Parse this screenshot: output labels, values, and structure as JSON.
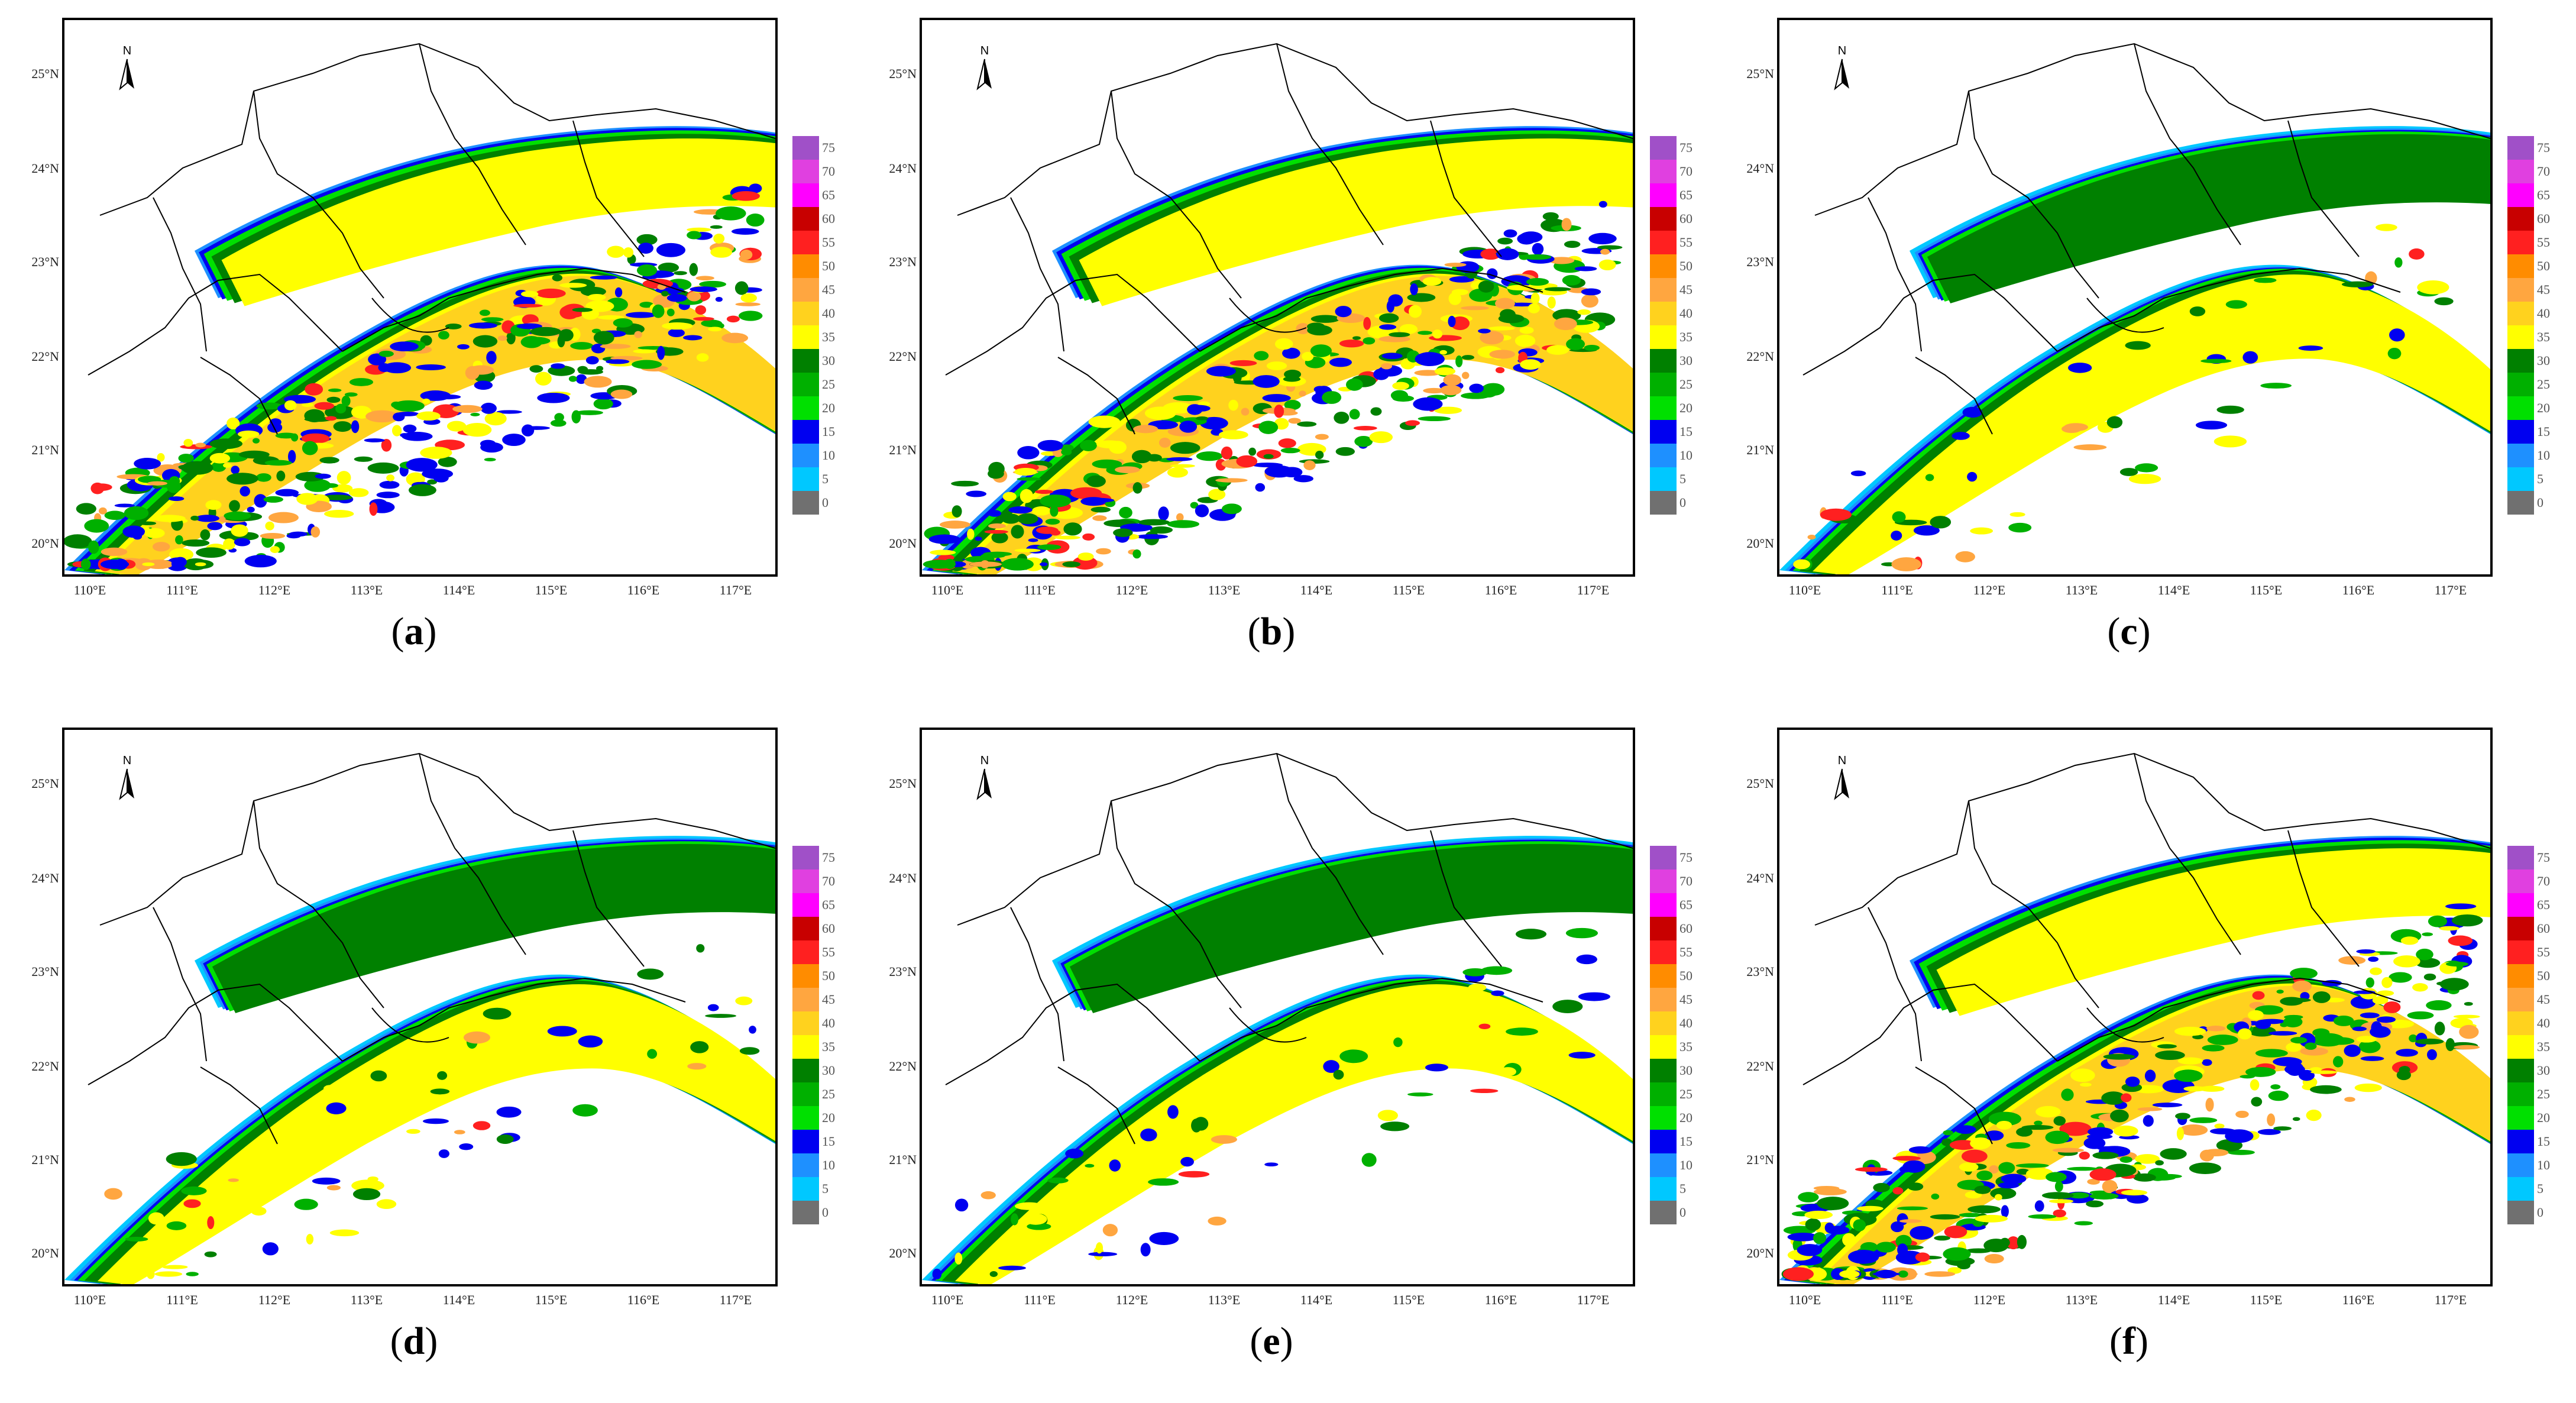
{
  "panels": [
    {
      "id": "a",
      "caption_prefix": "(",
      "caption_letter": "a",
      "caption_suffix": ")",
      "style": "speckle",
      "extent": "wide"
    },
    {
      "id": "b",
      "caption_prefix": "(",
      "caption_letter": "b",
      "caption_suffix": ")",
      "style": "banded",
      "extent": "narrow"
    },
    {
      "id": "c",
      "caption_prefix": "(",
      "caption_letter": "c",
      "caption_suffix": ")",
      "style": "smooth",
      "extent": "broad"
    },
    {
      "id": "d",
      "caption_prefix": "(",
      "caption_letter": "d",
      "caption_suffix": ")",
      "style": "smooth",
      "extent": "wide"
    },
    {
      "id": "e",
      "caption_prefix": "(",
      "caption_letter": "e",
      "caption_suffix": ")",
      "style": "smooth",
      "extent": "wide"
    },
    {
      "id": "f",
      "caption_prefix": "(",
      "caption_letter": "f",
      "caption_suffix": ")",
      "style": "speckle",
      "extent": "wide"
    }
  ],
  "lat_labels": [
    "25°N",
    "24°N",
    "23°N",
    "22°N",
    "21°N",
    "20°N"
  ],
  "lon_labels": [
    "110°E",
    "111°E",
    "112°E",
    "113°E",
    "114°E",
    "115°E",
    "116°E",
    "117°E"
  ],
  "north_arrow_label": "N",
  "colorbar": {
    "labels": [
      "75",
      "70",
      "65",
      "60",
      "55",
      "50",
      "45",
      "40",
      "35",
      "30",
      "25",
      "20",
      "15",
      "10",
      "5",
      "0"
    ],
    "colors": [
      "#a050c8",
      "#e040e0",
      "#ff00ff",
      "#c80000",
      "#ff2020",
      "#ff8c00",
      "#ffa640",
      "#ffd21e",
      "#ffff00",
      "#008000",
      "#00b000",
      "#00e000",
      "#0000f0",
      "#1e90ff",
      "#00c8ff",
      "#707070"
    ]
  }
}
